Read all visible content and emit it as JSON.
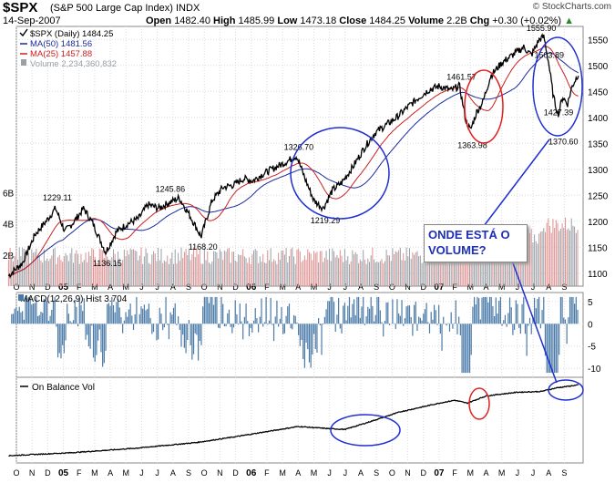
{
  "header": {
    "symbol": "$SPX",
    "name": "(S&P 500 Large Cap Index)",
    "exchange": "INDX",
    "date": "14-Sep-2007",
    "open_label": "Open",
    "open": "1482.40",
    "high_label": "High",
    "high": "1485.99",
    "low_label": "Low",
    "low": "1473.18",
    "close_label": "Close",
    "close": "1484.25",
    "volume_label": "Volume",
    "volume": "2.2B",
    "chg_label": "Chg",
    "chg": "+0.30 (+0.02%)",
    "copyright": "© StockCharts.com"
  },
  "legend": {
    "price": "$SPX (Daily) 1484.25",
    "ma50": "MA(50) 1481.56",
    "ma25": "MA(25) 1457.88",
    "volume": "Volume 2,234,360,832"
  },
  "colors": {
    "price": "#000000",
    "ma50": "#1a2a9c",
    "ma25": "#cc2020",
    "volume_up": "#9aa0a6",
    "volume_down": "#e09090",
    "macd_hist": "#4a7aa8",
    "obv": "#000000",
    "circle_blue": "#1f2fd0",
    "circle_red": "#e02020",
    "annotation": "#1f2fb5"
  },
  "annotation": {
    "line1": "ONDE ESTÁ O",
    "line2": "VOLUME?"
  },
  "chart_data": [
    {
      "type": "line",
      "title": "$SPX (Daily)",
      "ylim": [
        1075,
        1575
      ],
      "y_ticks": [
        "1550",
        "1500",
        "1450",
        "1400",
        "1350",
        "1300",
        "1250",
        "1200",
        "1150",
        "1100"
      ],
      "x_labels": [
        "O",
        "N",
        "D",
        "05",
        "F",
        "M",
        "A",
        "M",
        "J",
        "J",
        "A",
        "S",
        "O",
        "N",
        "D",
        "06",
        "F",
        "M",
        "A",
        "M",
        "J",
        "J",
        "A",
        "S",
        "O",
        "N",
        "D",
        "07",
        "F",
        "M",
        "A",
        "M",
        "J",
        "J",
        "A",
        "S"
      ],
      "price_anchors": [
        {
          "m": 0.0,
          "v": 1095
        },
        {
          "m": 0.9,
          "v": 1120
        },
        {
          "m": 1.7,
          "v": 1175
        },
        {
          "m": 2.4,
          "v": 1200
        },
        {
          "m": 3.0,
          "v": 1225
        },
        {
          "m": 3.6,
          "v": 1180
        },
        {
          "m": 4.2,
          "v": 1200
        },
        {
          "m": 4.8,
          "v": 1225
        },
        {
          "m": 5.4,
          "v": 1195
        },
        {
          "m": 6.2,
          "v": 1140
        },
        {
          "m": 6.9,
          "v": 1180
        },
        {
          "m": 7.6,
          "v": 1195
        },
        {
          "m": 8.3,
          "v": 1205
        },
        {
          "m": 8.9,
          "v": 1232
        },
        {
          "m": 9.6,
          "v": 1225
        },
        {
          "m": 10.2,
          "v": 1235
        },
        {
          "m": 10.9,
          "v": 1245
        },
        {
          "m": 11.6,
          "v": 1210
        },
        {
          "m": 12.3,
          "v": 1170
        },
        {
          "m": 13.0,
          "v": 1240
        },
        {
          "m": 13.7,
          "v": 1265
        },
        {
          "m": 14.4,
          "v": 1270
        },
        {
          "m": 15.0,
          "v": 1282
        },
        {
          "m": 15.6,
          "v": 1278
        },
        {
          "m": 16.2,
          "v": 1290
        },
        {
          "m": 16.8,
          "v": 1300
        },
        {
          "m": 17.6,
          "v": 1312
        },
        {
          "m": 18.4,
          "v": 1326
        },
        {
          "m": 18.9,
          "v": 1285
        },
        {
          "m": 19.5,
          "v": 1240
        },
        {
          "m": 20.1,
          "v": 1225
        },
        {
          "m": 20.7,
          "v": 1260
        },
        {
          "m": 21.3,
          "v": 1275
        },
        {
          "m": 22.0,
          "v": 1305
        },
        {
          "m": 22.7,
          "v": 1340
        },
        {
          "m": 23.4,
          "v": 1370
        },
        {
          "m": 24.1,
          "v": 1385
        },
        {
          "m": 24.8,
          "v": 1400
        },
        {
          "m": 25.5,
          "v": 1420
        },
        {
          "m": 26.2,
          "v": 1438
        },
        {
          "m": 26.8,
          "v": 1452
        },
        {
          "m": 27.5,
          "v": 1460
        },
        {
          "m": 28.3,
          "v": 1452
        },
        {
          "m": 28.8,
          "v": 1461
        },
        {
          "m": 29.2,
          "v": 1395
        },
        {
          "m": 29.5,
          "v": 1375
        },
        {
          "m": 29.9,
          "v": 1410
        },
        {
          "m": 30.3,
          "v": 1430
        },
        {
          "m": 30.8,
          "v": 1480
        },
        {
          "m": 31.5,
          "v": 1505
        },
        {
          "m": 32.2,
          "v": 1520
        },
        {
          "m": 32.9,
          "v": 1535
        },
        {
          "m": 33.4,
          "v": 1520
        },
        {
          "m": 33.9,
          "v": 1550
        },
        {
          "m": 34.2,
          "v": 1555
        },
        {
          "m": 34.5,
          "v": 1505
        },
        {
          "m": 34.8,
          "v": 1440
        },
        {
          "m": 35.1,
          "v": 1405
        },
        {
          "m": 35.4,
          "v": 1440
        },
        {
          "m": 35.7,
          "v": 1425
        },
        {
          "m": 36.0,
          "v": 1460
        },
        {
          "m": 36.4,
          "v": 1484
        }
      ],
      "price_labels": [
        {
          "m": 3.0,
          "v": 1229,
          "text": "1229.11"
        },
        {
          "m": 6.2,
          "v": 1136,
          "text": "1136.15"
        },
        {
          "m": 10.2,
          "v": 1246,
          "text": "1245.86"
        },
        {
          "m": 12.3,
          "v": 1168,
          "text": "1168.20"
        },
        {
          "m": 18.4,
          "v": 1327,
          "text": "1326.70"
        },
        {
          "m": 20.1,
          "v": 1219,
          "text": "1219.29"
        },
        {
          "m": 28.8,
          "v": 1462,
          "text": "1461.57"
        },
        {
          "m": 29.5,
          "v": 1364,
          "text": "1363.98"
        },
        {
          "m": 33.9,
          "v": 1556,
          "text": "1555.90"
        },
        {
          "m": 34.4,
          "v": 1504,
          "text": "1503.89"
        },
        {
          "m": 35.0,
          "v": 1427,
          "text": "1427.39"
        },
        {
          "m": 35.3,
          "v": 1371,
          "text": "1370.60"
        }
      ],
      "volume_ticks": [
        "6B",
        "4B",
        "2B"
      ],
      "volume_ylim": [
        0,
        7
      ]
    },
    {
      "type": "area",
      "title": "MACD(12,26,9) Hist 3.704",
      "ylim": [
        -12,
        7
      ],
      "y_ticks": [
        "5",
        "0",
        "-5",
        "-10"
      ]
    },
    {
      "type": "line",
      "title": "On Balance Vol",
      "obv_anchors": [
        {
          "m": 0.0,
          "v": 0.0
        },
        {
          "m": 4.0,
          "v": 0.04
        },
        {
          "m": 8.0,
          "v": 0.1
        },
        {
          "m": 12.0,
          "v": 0.18
        },
        {
          "m": 14.5,
          "v": 0.26
        },
        {
          "m": 16.5,
          "v": 0.33
        },
        {
          "m": 18.5,
          "v": 0.4
        },
        {
          "m": 20.5,
          "v": 0.37
        },
        {
          "m": 21.5,
          "v": 0.36
        },
        {
          "m": 23.0,
          "v": 0.46
        },
        {
          "m": 25.0,
          "v": 0.6
        },
        {
          "m": 27.5,
          "v": 0.72
        },
        {
          "m": 28.5,
          "v": 0.76
        },
        {
          "m": 29.3,
          "v": 0.72
        },
        {
          "m": 30.5,
          "v": 0.82
        },
        {
          "m": 32.5,
          "v": 0.87
        },
        {
          "m": 34.0,
          "v": 0.88
        },
        {
          "m": 35.0,
          "v": 0.93
        },
        {
          "m": 36.4,
          "v": 0.97
        }
      ]
    }
  ]
}
